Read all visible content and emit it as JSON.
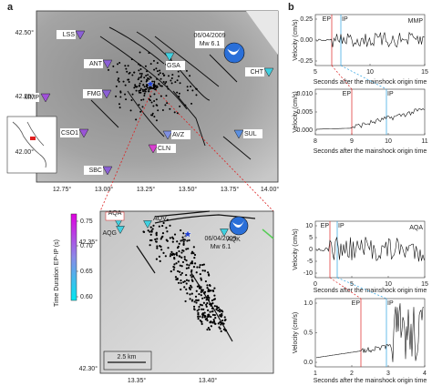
{
  "panel_a": {
    "label": "a",
    "yticks": [
      "42.50°",
      "42.25°",
      "42.00°"
    ],
    "xticks": [
      "12.75°",
      "13.00°",
      "13.25°",
      "13.50°",
      "13.75°",
      "14.00°"
    ],
    "stations": [
      "LSS",
      "ANT",
      "MMP",
      "FMG",
      "CSO1",
      "SBC",
      "CLN",
      "AVZ",
      "SUL",
      "CHT",
      "GSA"
    ],
    "event": {
      "date": "06/04/2009",
      "magnitude": "Mw 6.1"
    }
  },
  "inset": {
    "yticks": [
      "42.35°",
      "42.30°"
    ],
    "xticks": [
      "13.35°",
      "13.40°"
    ],
    "stations": [
      "AQA",
      "AQG",
      "AQV",
      "AQK"
    ],
    "event": {
      "date": "06/04/2009",
      "magnitude": "Mw 6.1"
    },
    "scale_bar": "2.5 km"
  },
  "colorbar": {
    "title": "Time Duration EP-IP (s)",
    "ticks": [
      "0.75",
      "0.70",
      "0.65",
      "0.60"
    ]
  },
  "panel_b": {
    "label": "b",
    "plots": [
      {
        "ylabel": "Velocity (cm/s)",
        "xlabel": "Seconds after the mainshock origin time",
        "yticks": [
          "0.25",
          "0.00",
          "-0.25"
        ],
        "xticks": [
          "5",
          "10",
          "15"
        ],
        "station": "MMP",
        "ep": "EP",
        "ip": "IP"
      },
      {
        "ylabel": "Velocity (cm/s)",
        "xlabel": "Seconds after the mainshock origin time",
        "yticks": [
          "0.010",
          "0.005",
          "0.000"
        ],
        "xticks": [
          "8",
          "9",
          "10",
          "11"
        ],
        "ep": "EP",
        "ip": "IP"
      },
      {
        "ylabel": "Velocity (cm/s)",
        "xlabel": "Seconds after the mainshock origin time",
        "yticks": [
          "10",
          "5",
          "0",
          "-5",
          "-10"
        ],
        "xticks": [
          "0",
          "5",
          "10",
          "15"
        ],
        "station": "AQA",
        "ep": "EP",
        "ip": "IP"
      },
      {
        "ylabel": "Velocity (cm/s)",
        "xlabel": "Seconds after the mainshock origin time",
        "yticks": [
          "1.0",
          "0.5",
          "0.0"
        ],
        "xticks": [
          "1",
          "2",
          "3",
          "4"
        ],
        "ep": "EP",
        "ip": "IP"
      }
    ]
  }
}
